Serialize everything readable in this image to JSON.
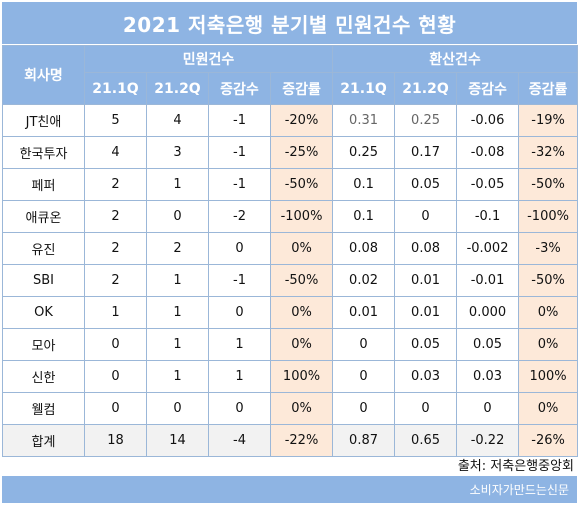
{
  "title": "2021 저축은행 분기별 민원건수 현황",
  "header": {
    "company_col": "회사명",
    "group1": "민원건수",
    "group2": "환산건수",
    "sub": [
      "21.1Q",
      "21.2Q",
      "증감수",
      "증감률",
      "21.1Q",
      "21.2Q",
      "증감수",
      "증감률"
    ]
  },
  "rows": [
    [
      "JT친애",
      "5",
      "4",
      "-1",
      "-20%",
      "0.31",
      "0.25",
      "-0.06",
      "-19%"
    ],
    [
      "한국투자",
      "4",
      "3",
      "-1",
      "-25%",
      "0.25",
      "0.17",
      "-0.08",
      "-32%"
    ],
    [
      "페퍼",
      "2",
      "1",
      "-1",
      "-50%",
      "0.1",
      "0.05",
      "-0.05",
      "-50%"
    ],
    [
      "애큐온",
      "2",
      "0",
      "-2",
      "-100%",
      "0.1",
      "0",
      "-0.1",
      "-100%"
    ],
    [
      "유진",
      "2",
      "2",
      "0",
      "0%",
      "0.08",
      "0.08",
      "-0.002",
      "-3%"
    ],
    [
      "SBI",
      "2",
      "1",
      "-1",
      "-50%",
      "0.02",
      "0.01",
      "-0.01",
      "-50%"
    ],
    [
      "OK",
      "1",
      "1",
      "0",
      "0%",
      "0.01",
      "0.01",
      "0.000",
      "0%"
    ],
    [
      "모아",
      "0",
      "1",
      "1",
      "0%",
      "0",
      "0.05",
      "0.05",
      "0%"
    ],
    [
      "신한",
      "0",
      "1",
      "1",
      "100%",
      "0",
      "0.03",
      "0.03",
      "100%"
    ],
    [
      "웰컴",
      "0",
      "0",
      "0",
      "0%",
      "0",
      "0",
      "0",
      "0%"
    ]
  ],
  "total": [
    "합계",
    "18",
    "14",
    "-4",
    "-22%",
    "0.87",
    "0.65",
    "-0.22",
    "-26%"
  ],
  "source": "출처: 저축은행중앙회",
  "publisher": "소비자가만드는신문",
  "colors": {
    "header_bg": "#8eb4e3",
    "rate_cell_bg": "#fde9d9",
    "total_bg": "#f2f2f2"
  }
}
